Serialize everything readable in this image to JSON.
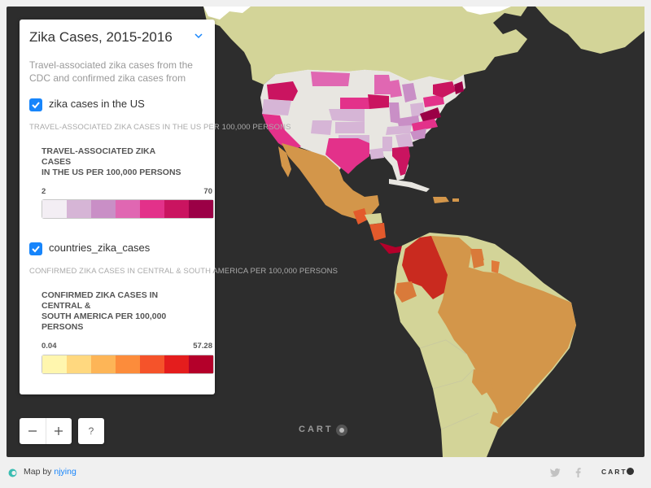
{
  "legend": {
    "title": "Zika Cases, 2015-2016",
    "description": "Travel-associated zika cases from the CDC and confirmed zika cases from",
    "layers": [
      {
        "name": "zika cases in the US",
        "checked": true,
        "subtitle": "TRAVEL-ASSOCIATED ZIKA CASES IN THE US PER 100,000 PERSONS",
        "heading_lines": [
          "TRAVEL-ASSOCIATED ZIKA",
          "CASES",
          "IN THE US PER 100,000 PERSONS"
        ],
        "min": "2",
        "max": "70",
        "ramp": [
          "#f3eef4",
          "#d6b5d6",
          "#c98fc6",
          "#e067b2",
          "#e3318a",
          "#ca1460",
          "#9b0046"
        ]
      },
      {
        "name": "countries_zika_cases",
        "checked": true,
        "subtitle": "CONFIRMED ZIKA CASES IN CENTRAL & SOUTH AMERICA PER 100,000 PERSONS",
        "heading_lines": [
          "CONFIRMED ZIKA CASES IN",
          "CENTRAL &",
          "SOUTH AMERICA PER 100,000",
          "PERSONS"
        ],
        "min": "0.04",
        "max": "57.28",
        "ramp": [
          "#fff6ae",
          "#ffd87f",
          "#fdb557",
          "#fc8c3b",
          "#f5532a",
          "#e41d1d",
          "#b4002a"
        ]
      }
    ]
  },
  "controls": {
    "zoom_out_icon": "minus-icon",
    "zoom_in_icon": "plus-icon",
    "help_label": "?"
  },
  "watermark": "CART",
  "footer": {
    "map_by_label": "Map by",
    "author": "njying",
    "brand": "CART",
    "icons": [
      "twitter-icon",
      "facebook-icon"
    ]
  },
  "map": {
    "background_color": "#2d2d2d",
    "land_color": "#d3d498",
    "no_data_color": "#e8e6e1"
  }
}
